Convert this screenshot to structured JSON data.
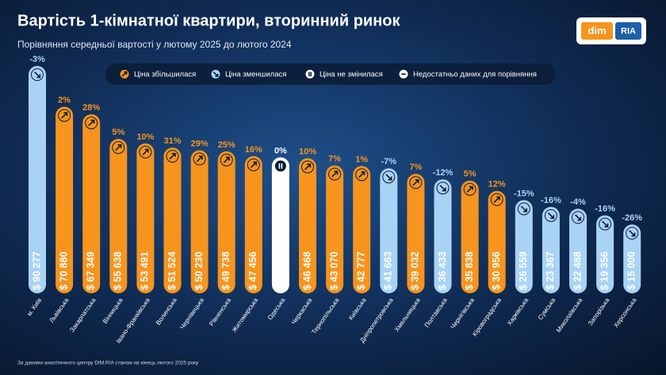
{
  "chart_data": {
    "type": "bar",
    "title": "Вартість 1-кімнатної квартири, вторинний ринок",
    "subtitle": "Порівняння середньої вартості у лютому 2025 до лютого 2024",
    "footnote": "За даними аналітичного центру DIM.RIA станом на кінець лютого 2025 року",
    "logo": {
      "left": "dim",
      "right": "RIA"
    },
    "legend": [
      {
        "name": "Ціна збільшилася",
        "color": "#f7941d"
      },
      {
        "name": "Ціна зменшилася",
        "color": "#a9d3f5"
      },
      {
        "name": "Ціна не змінилася",
        "color": "#ffffff"
      },
      {
        "name": "Недостатньо даних для порівняння",
        "color": "#ffffff"
      }
    ],
    "categories": [
      "м. Київ",
      "Львівська",
      "Закарпатська",
      "Вінницька",
      "Івано-Франківська",
      "Волинська",
      "Чернівецька",
      "Рівненська",
      "Житомирська",
      "Одеська",
      "Черкаська",
      "Тернопільська",
      "Київська",
      "Дніпропетровська",
      "Хмельницька",
      "Полтавська",
      "Чернігівська",
      "Кіровоградська",
      "Харківська",
      "Сумська",
      "Миколаївська",
      "Запорізька",
      "Херсонська"
    ],
    "values": [
      90277,
      70880,
      67349,
      55638,
      53491,
      51524,
      50230,
      49738,
      47456,
      46904,
      46468,
      43070,
      42777,
      41663,
      39032,
      36433,
      35838,
      30956,
      26559,
      23367,
      22488,
      19356,
      15000
    ],
    "value_labels": [
      "$ 90 277",
      "$ 70 880",
      "$ 67 349",
      "$ 55 638",
      "$ 53 491",
      "$ 51 524",
      "$ 50 230",
      "$ 49 738",
      "$ 47 456",
      "$ 46 904",
      "$ 46 468",
      "$ 43 070",
      "$ 42 777",
      "$ 41 663",
      "$ 39 032",
      "$ 36 433",
      "$ 35 838",
      "$ 30 956",
      "$ 26 559",
      "$ 23 367",
      "$ 22 488",
      "$ 19 356",
      "$ 15 000"
    ],
    "changes": [
      -3,
      2,
      28,
      5,
      10,
      31,
      29,
      25,
      16,
      0,
      10,
      7,
      1,
      -7,
      7,
      -12,
      5,
      12,
      -15,
      -16,
      -4,
      -16,
      -26
    ],
    "change_labels": [
      "-3%",
      "2%",
      "28%",
      "5%",
      "10%",
      "31%",
      "29%",
      "25%",
      "16%",
      "0%",
      "10%",
      "7%",
      "1%",
      "-7%",
      "7%",
      "-12%",
      "5%",
      "12%",
      "-15%",
      "-16%",
      "-4%",
      "-16%",
      "-26%"
    ]
  }
}
